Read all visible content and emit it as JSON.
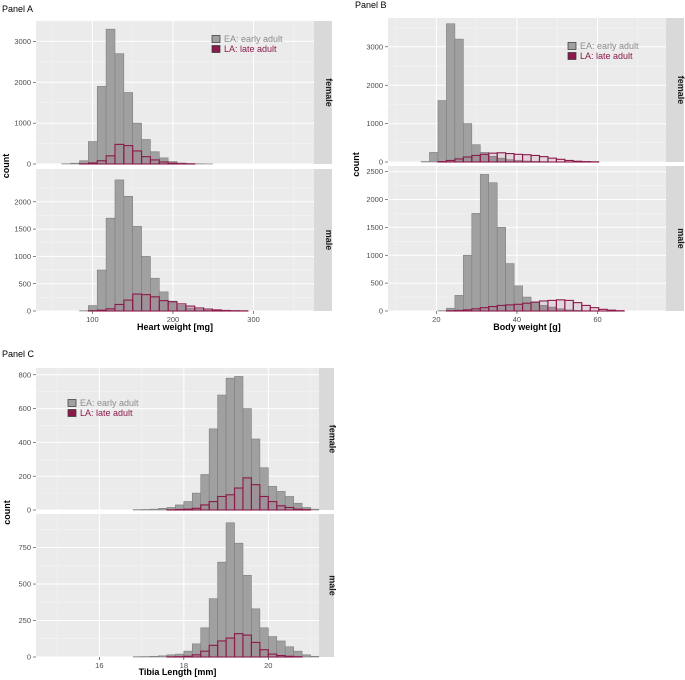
{
  "chart_data": [
    {
      "type": "bar",
      "panel_label": "Panel A",
      "xlabel": "Heart weight [mg]",
      "ylabel": "count",
      "xlim": [
        30,
        375
      ],
      "xticks": [
        100,
        200,
        300
      ],
      "bin_start": 40,
      "bin_width": 11,
      "legend": {
        "position": "top-right",
        "entries": [
          {
            "label": "EA: early adult",
            "fill": "#a0a0a0",
            "stroke": "#7f7f7f",
            "text_color": "#8c8c8c"
          },
          {
            "label": "LA: late adult",
            "fill": "#8b1a4a",
            "stroke": "#8b1a4a",
            "text_color": "#8b1a4a"
          }
        ]
      },
      "facets": [
        {
          "strip": "female",
          "ylim": [
            0,
            3500
          ],
          "yticks": [
            0,
            1000,
            2000,
            3000
          ],
          "series": [
            {
              "name": "EA: early adult",
              "values": [
                0,
                0,
                5,
                20,
                80,
                550,
                1900,
                3300,
                2700,
                1750,
                1000,
                600,
                300,
                150,
                60,
                25,
                10,
                5,
                2,
                0,
                0,
                0,
                0,
                0,
                0,
                0,
                0,
                0,
                0,
                0
              ]
            },
            {
              "name": "LA: late adult",
              "values": [
                0,
                0,
                0,
                0,
                5,
                25,
                80,
                200,
                480,
                450,
                320,
                180,
                100,
                50,
                20,
                8,
                3,
                0,
                0,
                0,
                0,
                0,
                0,
                0,
                0,
                0,
                0,
                0,
                0,
                0
              ]
            }
          ]
        },
        {
          "strip": "male",
          "ylim": [
            0,
            2600
          ],
          "yticks": [
            0,
            500,
            1000,
            1500,
            2000
          ],
          "series": [
            {
              "name": "EA: early adult",
              "values": [
                0,
                0,
                0,
                0,
                5,
                100,
                750,
                1700,
                2400,
                2100,
                1550,
                1000,
                600,
                350,
                180,
                100,
                55,
                25,
                10,
                5,
                2,
                0,
                0,
                0,
                0,
                0,
                0,
                0,
                0,
                0
              ]
            },
            {
              "name": "LA: late adult",
              "values": [
                0,
                0,
                0,
                0,
                0,
                5,
                15,
                40,
                120,
                200,
                310,
                300,
                260,
                190,
                170,
                130,
                90,
                55,
                35,
                20,
                10,
                5,
                3,
                0,
                0,
                0,
                0,
                0,
                0,
                0
              ]
            }
          ]
        }
      ]
    },
    {
      "type": "bar",
      "panel_label": "Panel B",
      "xlabel": "Body weight [g]",
      "ylabel": "count",
      "xlim": [
        8,
        77
      ],
      "xticks": [
        20,
        40,
        60
      ],
      "bin_start": 12,
      "bin_width": 2.1,
      "legend": {
        "position": "top-right",
        "entries": [
          {
            "label": "EA: early adult",
            "fill": "#a0a0a0",
            "stroke": "#7f7f7f",
            "text_color": "#8c8c8c"
          },
          {
            "label": "LA: late adult",
            "fill": "#8b1a4a",
            "stroke": "#8b1a4a",
            "text_color": "#8b1a4a"
          }
        ]
      },
      "facets": [
        {
          "strip": "female",
          "ylim": [
            0,
            3750
          ],
          "yticks": [
            0,
            1000,
            2000,
            3000
          ],
          "series": [
            {
              "name": "EA: early adult",
              "values": [
                0,
                0,
                10,
                250,
                1600,
                3600,
                3200,
                1000,
                450,
                250,
                150,
                100,
                60,
                40,
                25,
                15,
                10,
                5,
                2,
                0,
                0,
                0,
                0,
                0,
                0,
                0,
                0,
                0
              ]
            },
            {
              "name": "LA: late adult",
              "values": [
                0,
                0,
                0,
                0,
                10,
                40,
                80,
                130,
                170,
                200,
                230,
                240,
                220,
                200,
                190,
                170,
                140,
                100,
                70,
                40,
                20,
                10,
                5,
                0,
                0,
                0,
                0,
                0
              ]
            }
          ]
        },
        {
          "strip": "male",
          "ylim": [
            0,
            2600
          ],
          "yticks": [
            0,
            500,
            1000,
            1500,
            2000,
            2500
          ],
          "series": [
            {
              "name": "EA: early adult",
              "values": [
                0,
                0,
                0,
                0,
                5,
                50,
                280,
                1000,
                1750,
                2450,
                2300,
                1500,
                850,
                450,
                250,
                150,
                100,
                70,
                40,
                20,
                10,
                5,
                2,
                0,
                0,
                0,
                0,
                0
              ]
            },
            {
              "name": "LA: late adult",
              "values": [
                0,
                0,
                0,
                0,
                0,
                5,
                10,
                20,
                40,
                60,
                80,
                100,
                110,
                120,
                140,
                160,
                180,
                190,
                200,
                190,
                150,
                100,
                60,
                30,
                15,
                5,
                0,
                0
              ]
            }
          ]
        }
      ]
    },
    {
      "type": "bar",
      "panel_label": "Panel C",
      "xlabel": "Tibia Length [mm]",
      "ylabel": "count",
      "xlim": [
        14.5,
        21.2
      ],
      "xticks": [
        16,
        18,
        20
      ],
      "bin_start": 14.6,
      "bin_width": 0.2,
      "legend": {
        "position": "top-left",
        "entries": [
          {
            "label": "EA: early adult",
            "fill": "#a0a0a0",
            "stroke": "#7f7f7f",
            "text_color": "#8c8c8c"
          },
          {
            "label": "LA: late adult",
            "fill": "#8b1a4a",
            "stroke": "#8b1a4a",
            "text_color": "#8b1a4a"
          }
        ]
      },
      "facets": [
        {
          "strip": "female",
          "ylim": [
            0,
            840
          ],
          "yticks": [
            0,
            200,
            400,
            600,
            800
          ],
          "series": [
            {
              "name": "EA: early adult",
              "values": [
                0,
                0,
                0,
                0,
                0,
                0,
                0,
                0,
                0,
                0,
                0,
                2,
                3,
                5,
                10,
                15,
                30,
                50,
                100,
                210,
                480,
                680,
                780,
                790,
                600,
                420,
                250,
                140,
                110,
                80,
                40,
                15,
                5,
                0
              ]
            },
            {
              "name": "LA: late adult",
              "values": [
                0,
                0,
                0,
                0,
                0,
                0,
                0,
                0,
                0,
                0,
                0,
                0,
                0,
                0,
                0,
                1,
                3,
                5,
                10,
                30,
                50,
                80,
                90,
                130,
                190,
                150,
                80,
                50,
                25,
                15,
                5,
                2,
                0,
                0
              ]
            }
          ]
        },
        {
          "strip": "male",
          "ylim": [
            0,
            980
          ],
          "yticks": [
            0,
            250,
            500,
            750
          ],
          "series": [
            {
              "name": "EA: early adult",
              "values": [
                0,
                0,
                0,
                0,
                0,
                0,
                0,
                0,
                0,
                0,
                0,
                2,
                3,
                5,
                8,
                15,
                20,
                40,
                90,
                200,
                400,
                650,
                920,
                780,
                560,
                330,
                200,
                140,
                110,
                70,
                40,
                15,
                5,
                0
              ]
            },
            {
              "name": "LA: late adult",
              "values": [
                0,
                0,
                0,
                0,
                0,
                0,
                0,
                0,
                0,
                0,
                0,
                0,
                0,
                0,
                0,
                1,
                2,
                5,
                15,
                40,
                80,
                110,
                130,
                160,
                150,
                100,
                50,
                20,
                10,
                5,
                2,
                0,
                0,
                0
              ]
            }
          ]
        }
      ]
    }
  ]
}
